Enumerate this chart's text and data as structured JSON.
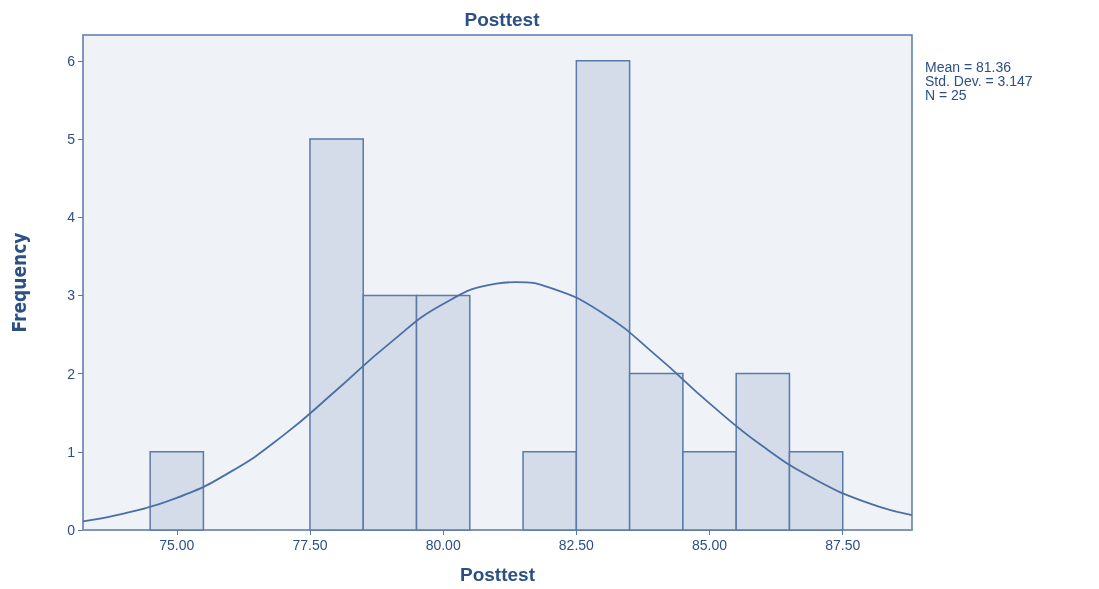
{
  "chart_data": {
    "type": "histogram",
    "title": "Posttest",
    "xlabel": "Posttest",
    "ylabel": "Frequency",
    "bins": [
      74.5,
      75.5,
      76.5,
      77.5,
      78.5,
      79.5,
      80.5,
      81.5,
      82.5,
      83.5,
      84.5,
      85.5,
      86.5,
      87.5
    ],
    "values": [
      1,
      0,
      0,
      5,
      3,
      3,
      0,
      1,
      6,
      2,
      1,
      2,
      1
    ],
    "color": "#d3dce8",
    "series": [
      {
        "type": "line",
        "color": "#4a6fa5",
        "x": [
          73.24,
          74,
          75,
          76,
          77,
          78,
          79,
          80,
          81,
          81.36,
          82,
          83,
          84,
          85,
          86,
          87,
          88,
          88.8
        ],
        "values": [
          0.11,
          0.21,
          0.41,
          0.74,
          1.21,
          1.79,
          2.39,
          2.89,
          3.15,
          3.17,
          3.1,
          2.77,
          2.23,
          1.62,
          1.07,
          0.64,
          0.34,
          0.19
        ]
      }
    ],
    "xlim": [
      73.24,
      88.8
    ],
    "xticks": [
      {
        "value": 75,
        "label": "75.00"
      },
      {
        "value": 77.5,
        "label": "77.50"
      },
      {
        "value": 80,
        "label": "80.00"
      },
      {
        "value": 82.5,
        "label": "82.50"
      },
      {
        "value": 85,
        "label": "85.00"
      },
      {
        "value": 87.5,
        "label": "87.50"
      }
    ],
    "ylim": [
      0,
      6.33
    ],
    "yticks": [
      0,
      1,
      2,
      3,
      4,
      5,
      6
    ],
    "grid": false,
    "marker": "none",
    "annotations": [
      "Mean = 81.36",
      "Std. Dev. = 3.147",
      "N = 25"
    ]
  }
}
